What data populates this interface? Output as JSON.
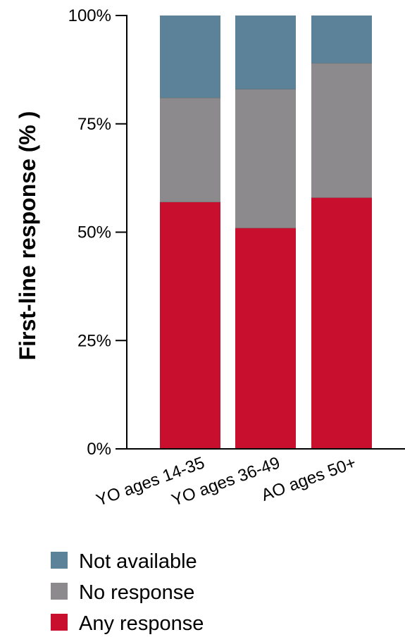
{
  "chart_data": {
    "type": "bar",
    "stacked": true,
    "title": "",
    "xlabel": "",
    "ylabel": "First-line response (% )",
    "ylim": [
      0,
      100
    ],
    "yticks": [
      "0%",
      "25%",
      "50%",
      "75%",
      "100%"
    ],
    "ytick_values": [
      0,
      25,
      50,
      75,
      100
    ],
    "grid": false,
    "legend_position": "bottom-left",
    "categories": [
      "YO ages 14-35",
      "YO ages 36-49",
      "AO ages 50+"
    ],
    "series": [
      {
        "name": "Any response",
        "color": "#c8102e",
        "values": [
          57,
          51,
          58
        ]
      },
      {
        "name": "No response",
        "color": "#8c8a8c",
        "values": [
          24,
          32,
          31
        ]
      },
      {
        "name": "Not available",
        "color": "#5b8299",
        "values": [
          19,
          17,
          11
        ]
      }
    ],
    "legend_order": [
      "Not available",
      "No response",
      "Any response"
    ]
  }
}
